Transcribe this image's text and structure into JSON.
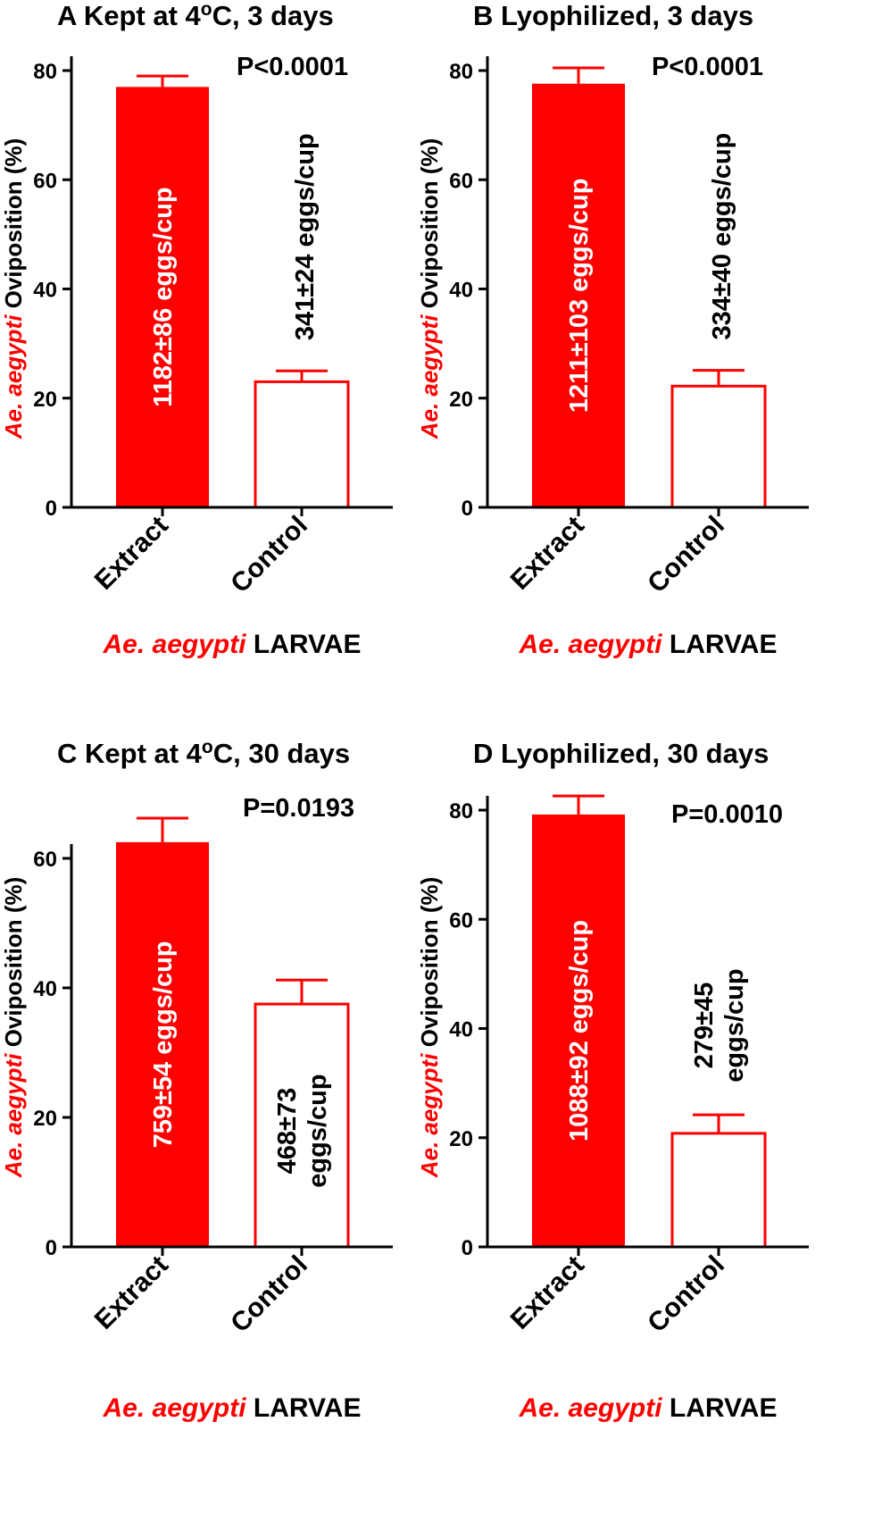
{
  "figure": {
    "accent_color": "#ff0000",
    "text_color": "#000000",
    "species_label": "Ae. aegypti",
    "ylabel_rest": " Oviposition (%)",
    "xlabel_rest": " LARVAE"
  },
  "chart_data": [
    {
      "type": "bar",
      "panel_letter": "A",
      "title_pre": "Kept at 4",
      "title_sup": "o",
      "title_post": "C, 3 days",
      "pvalue": "P<0.0001",
      "categories": [
        "Extract",
        "Control"
      ],
      "values": [
        77,
        23
      ],
      "errors": [
        2,
        2
      ],
      "bar_labels": [
        [
          "1182±86 eggs/cup"
        ],
        [
          "341±24 eggs/cup"
        ]
      ],
      "ylim": [
        0,
        80
      ],
      "yticks": [
        "0",
        "20",
        "40",
        "60",
        "80"
      ],
      "ylabel": "Ae. aegypti Oviposition (%)",
      "xlabel": "Ae. aegypti LARVAE"
    },
    {
      "type": "bar",
      "panel_letter": "B",
      "title_pre": "Lyophilized, 3 days",
      "title_sup": "",
      "title_post": "",
      "pvalue": "P<0.0001",
      "categories": [
        "Extract",
        "Control"
      ],
      "values": [
        77.6,
        22.2
      ],
      "errors": [
        2.9,
        2.9
      ],
      "bar_labels": [
        [
          "1211±103 eggs/cup"
        ],
        [
          "334±40 eggs/cup"
        ]
      ],
      "ylim": [
        0,
        80
      ],
      "yticks": [
        "0",
        "20",
        "40",
        "60",
        "80"
      ],
      "ylabel": "Ae. aegypti Oviposition (%)",
      "xlabel": "Ae. aegypti LARVAE"
    },
    {
      "type": "bar",
      "panel_letter": "C",
      "title_pre": "Kept at 4",
      "title_sup": "o",
      "title_post": "C, 30 days",
      "pvalue": "P=0.0193",
      "categories": [
        "Extract",
        "Control"
      ],
      "values": [
        62.5,
        37.5
      ],
      "errors": [
        3.7,
        3.7
      ],
      "bar_labels": [
        [
          "759±54 eggs/cup"
        ],
        [
          "468±73",
          "eggs/cup"
        ]
      ],
      "ylim": [
        0,
        60
      ],
      "yticks": [
        "0",
        "20",
        "40",
        "60"
      ],
      "ylabel": "Ae. aegypti Oviposition (%)",
      "xlabel": "Ae. aegypti LARVAE"
    },
    {
      "type": "bar",
      "panel_letter": "D",
      "title_pre": "Lyophilized, 30 days",
      "title_sup": "",
      "title_post": "",
      "pvalue": "P=0.0010",
      "categories": [
        "Extract",
        "Control"
      ],
      "values": [
        79.2,
        20.8
      ],
      "errors": [
        3.4,
        3.4
      ],
      "bar_labels": [
        [
          "1088±92 eggs/cup"
        ],
        [
          "279±45",
          "eggs/cup"
        ]
      ],
      "ylim": [
        0,
        80
      ],
      "yticks": [
        "0",
        "20",
        "40",
        "60",
        "80"
      ],
      "ylabel": "Ae. aegypti Oviposition (%)",
      "xlabel": "Ae. aegypti LARVAE"
    }
  ]
}
